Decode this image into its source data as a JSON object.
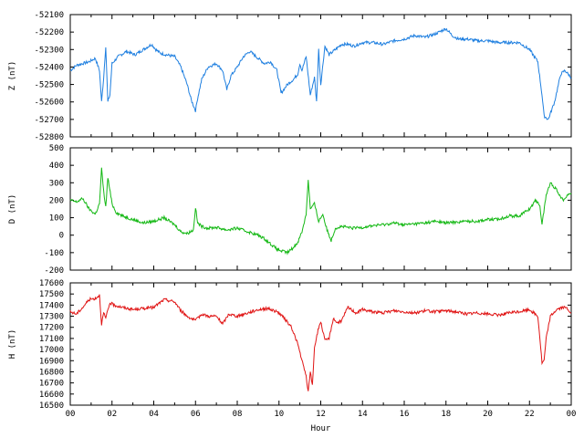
{
  "chart_data": [
    {
      "type": "line",
      "ylabel": "Z (nT)",
      "color": "#1e7fe0",
      "ylim": [
        -52800,
        -52100
      ],
      "yticks": [
        -52100,
        -52200,
        -52300,
        -52400,
        -52500,
        -52600,
        -52700,
        -52800
      ],
      "series": [
        {
          "x": [
            0,
            0.3,
            0.6,
            0.9,
            1.2,
            1.4,
            1.5,
            1.6,
            1.7,
            1.8,
            1.9,
            2.0,
            2.3,
            2.7,
            3.1,
            3.5,
            3.9,
            4.1,
            4.3,
            4.6,
            5.0,
            5.3,
            5.6,
            5.8,
            6.0,
            6.1,
            6.3,
            6.6,
            7.0,
            7.3,
            7.5,
            7.7,
            8.0,
            8.3,
            8.6,
            9.0,
            9.3,
            9.6,
            9.9,
            10.1,
            10.4,
            10.7,
            10.9,
            11.0,
            11.1,
            11.3,
            11.5,
            11.7,
            11.8,
            11.9,
            12.0,
            12.2,
            12.4,
            12.6,
            12.8,
            13.0,
            13.3,
            13.6,
            14.0,
            14.5,
            15.0,
            15.5,
            16.0,
            16.5,
            17.0,
            17.5,
            18.0,
            18.3,
            18.6,
            19.0,
            19.5,
            20.0,
            20.5,
            21.0,
            21.5,
            22.0,
            22.4,
            22.6,
            22.7,
            22.9,
            23.2,
            23.5,
            23.7,
            24.0
          ],
          "y": [
            -52420,
            -52390,
            -52380,
            -52370,
            -52350,
            -52420,
            -52600,
            -52460,
            -52280,
            -52600,
            -52560,
            -52380,
            -52340,
            -52310,
            -52330,
            -52300,
            -52270,
            -52300,
            -52320,
            -52330,
            -52340,
            -52400,
            -52500,
            -52590,
            -52650,
            -52580,
            -52470,
            -52400,
            -52380,
            -52420,
            -52530,
            -52450,
            -52400,
            -52340,
            -52310,
            -52350,
            -52380,
            -52370,
            -52420,
            -52550,
            -52500,
            -52470,
            -52440,
            -52380,
            -52420,
            -52340,
            -52560,
            -52460,
            -52600,
            -52300,
            -52500,
            -52280,
            -52330,
            -52310,
            -52290,
            -52270,
            -52270,
            -52280,
            -52260,
            -52260,
            -52270,
            -52250,
            -52240,
            -52220,
            -52230,
            -52210,
            -52180,
            -52220,
            -52240,
            -52240,
            -52250,
            -52250,
            -52260,
            -52260,
            -52260,
            -52300,
            -52370,
            -52560,
            -52680,
            -52700,
            -52600,
            -52440,
            -52420,
            -52460
          ]
        }
      ]
    },
    {
      "type": "line",
      "ylabel": "D (nT)",
      "color": "#14b814",
      "ylim": [
        -200,
        500
      ],
      "yticks": [
        500,
        400,
        300,
        200,
        100,
        0,
        -100,
        -200
      ],
      "series": [
        {
          "x": [
            0,
            0.3,
            0.6,
            0.9,
            1.2,
            1.4,
            1.5,
            1.6,
            1.7,
            1.8,
            2.0,
            2.2,
            2.5,
            3.0,
            3.5,
            4.0,
            4.5,
            5.0,
            5.3,
            5.6,
            5.9,
            6.0,
            6.1,
            6.3,
            6.6,
            7.0,
            7.5,
            8.0,
            8.5,
            9.0,
            9.3,
            9.6,
            9.9,
            10.1,
            10.4,
            10.7,
            10.9,
            11.1,
            11.3,
            11.4,
            11.5,
            11.7,
            11.9,
            12.1,
            12.3,
            12.5,
            12.7,
            13.0,
            13.5,
            14.0,
            14.5,
            15.0,
            15.5,
            16.0,
            16.5,
            17.0,
            17.5,
            18.0,
            18.5,
            19.0,
            19.5,
            20.0,
            20.5,
            21.0,
            21.5,
            22.0,
            22.3,
            22.5,
            22.6,
            22.8,
            23.0,
            23.3,
            23.6,
            23.8,
            24.0
          ],
          "y": [
            200,
            190,
            210,
            150,
            120,
            180,
            380,
            250,
            160,
            330,
            180,
            130,
            110,
            90,
            70,
            80,
            100,
            60,
            20,
            10,
            30,
            160,
            70,
            50,
            40,
            45,
            30,
            40,
            20,
            0,
            -20,
            -50,
            -80,
            -90,
            -100,
            -70,
            -40,
            20,
            120,
            320,
            150,
            180,
            80,
            120,
            30,
            -30,
            40,
            50,
            40,
            45,
            55,
            60,
            70,
            60,
            65,
            70,
            80,
            70,
            75,
            80,
            80,
            90,
            90,
            110,
            110,
            150,
            200,
            170,
            60,
            230,
            300,
            260,
            200,
            230,
            240
          ]
        }
      ]
    },
    {
      "type": "line",
      "ylabel": "H (nT)",
      "color": "#e01414",
      "xlabel": "Hour",
      "ylim": [
        16500,
        17600
      ],
      "yticks": [
        17600,
        17500,
        17400,
        17300,
        17200,
        17100,
        17000,
        16900,
        16800,
        16700,
        16600,
        16500
      ],
      "xticks": [
        "00",
        "02",
        "04",
        "06",
        "08",
        "10",
        "12",
        "14",
        "16",
        "18",
        "20",
        "22",
        "00"
      ],
      "series": [
        {
          "x": [
            0,
            0.3,
            0.6,
            0.9,
            1.2,
            1.4,
            1.5,
            1.6,
            1.7,
            1.9,
            2.1,
            2.5,
            3.0,
            3.5,
            4.0,
            4.5,
            5.0,
            5.3,
            5.6,
            6.0,
            6.3,
            6.6,
            7.0,
            7.3,
            7.6,
            8.0,
            8.5,
            9.0,
            9.5,
            10.0,
            10.3,
            10.6,
            10.9,
            11.1,
            11.3,
            11.4,
            11.5,
            11.6,
            11.7,
            11.9,
            12.0,
            12.2,
            12.4,
            12.6,
            12.8,
            13.0,
            13.3,
            13.7,
            14.0,
            14.5,
            15.0,
            15.5,
            16.0,
            16.5,
            17.0,
            17.5,
            18.0,
            18.5,
            19.0,
            19.5,
            20.0,
            20.5,
            21.0,
            21.5,
            22.0,
            22.4,
            22.5,
            22.6,
            22.7,
            22.8,
            23.0,
            23.3,
            23.6,
            23.8,
            24.0
          ],
          "y": [
            17340,
            17320,
            17380,
            17450,
            17460,
            17490,
            17230,
            17330,
            17280,
            17420,
            17400,
            17380,
            17360,
            17370,
            17380,
            17450,
            17430,
            17350,
            17300,
            17260,
            17320,
            17300,
            17300,
            17230,
            17320,
            17300,
            17330,
            17360,
            17370,
            17330,
            17270,
            17200,
            17050,
            16900,
            16760,
            16620,
            16800,
            16680,
            17020,
            17200,
            17250,
            17080,
            17100,
            17280,
            17240,
            17260,
            17380,
            17330,
            17360,
            17340,
            17330,
            17350,
            17340,
            17330,
            17350,
            17340,
            17350,
            17340,
            17320,
            17330,
            17320,
            17310,
            17330,
            17340,
            17360,
            17300,
            17100,
            16880,
            16900,
            17100,
            17300,
            17360,
            17380,
            17370,
            17330
          ]
        }
      ]
    }
  ]
}
